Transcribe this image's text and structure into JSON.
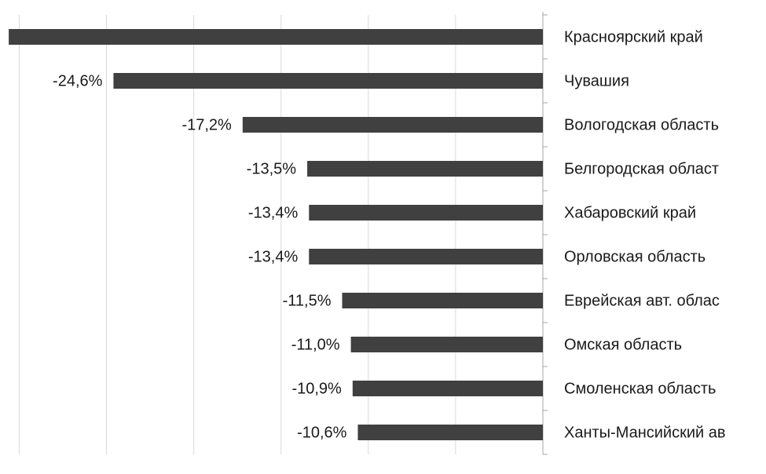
{
  "chart_data": {
    "type": "barh",
    "categories": [
      "Красноярский край",
      "Чувашия",
      "Вологодская область",
      "Белгородская област",
      "Хабаровский край",
      "Орловская область",
      "Еврейская авт. облас",
      "Омская область",
      "Смоленская область",
      "Ханты-Мансийский ав"
    ],
    "values": [
      -30.6,
      -24.6,
      -17.2,
      -13.5,
      -13.4,
      -13.4,
      -11.5,
      -11.0,
      -10.9,
      -10.6
    ],
    "value_labels": [
      null,
      "-24,6%",
      "-17,2%",
      "-13,5%",
      "-13,4%",
      "-13,4%",
      "-11,5%",
      "-11,0%",
      "-10,9%",
      "-10,6%"
    ],
    "color": "#404040",
    "xlim": [
      -31.1,
      0
    ],
    "xticks": [
      -30,
      -25,
      -20,
      -15,
      -10,
      -5
    ],
    "grid": true
  }
}
